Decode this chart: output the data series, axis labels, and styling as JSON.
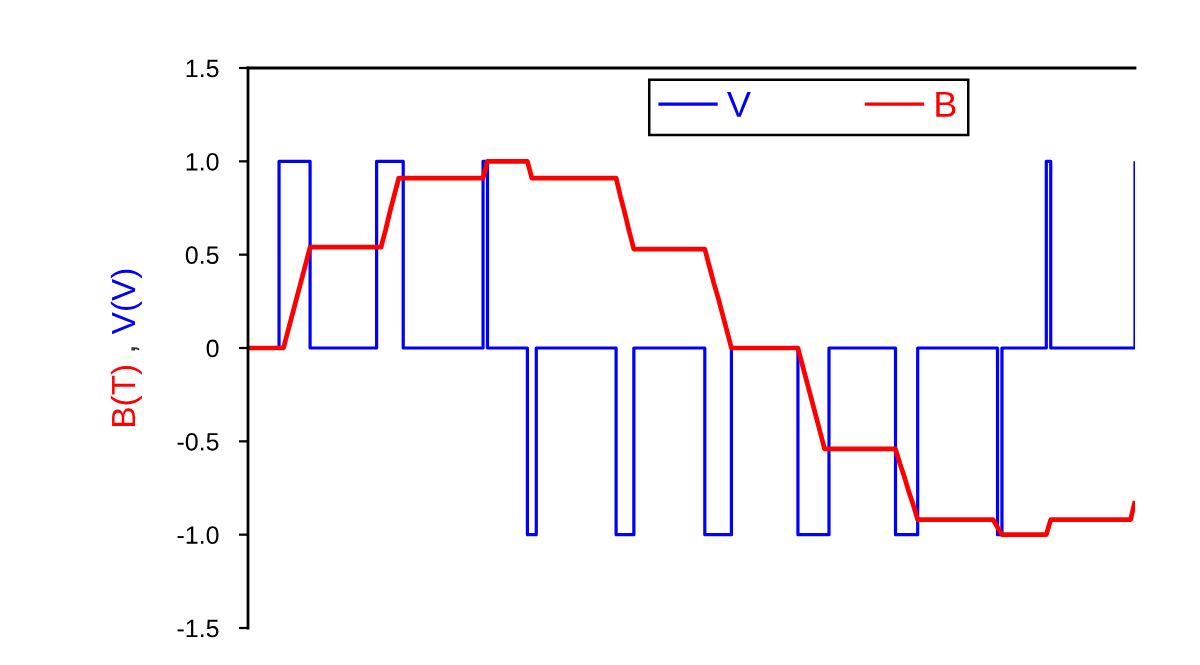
{
  "chart_data": {
    "type": "line",
    "ylabel": "B(T) , V(V)",
    "categories": [
      null,
      null,
      null,
      null,
      null,
      null,
      null,
      null,
      null,
      null,
      null,
      null,
      null,
      null,
      null,
      null,
      null,
      null,
      null,
      null,
      null,
      null,
      null,
      null,
      null,
      null,
      null,
      null,
      null,
      null,
      null,
      null,
      null,
      null,
      null,
      null,
      null,
      null,
      null,
      null,
      null,
      null,
      null,
      null,
      null,
      null,
      null,
      null,
      null,
      null,
      null,
      null,
      null,
      null,
      null,
      null,
      null,
      null,
      null,
      null,
      null,
      null,
      null,
      null,
      null,
      null,
      null,
      null,
      null,
      null,
      null,
      null,
      null,
      null,
      null,
      null,
      null,
      null,
      null,
      null,
      null,
      null,
      null,
      null,
      null,
      null,
      null,
      null,
      null,
      null,
      null,
      null,
      null,
      null,
      null,
      null,
      null,
      null,
      null,
      null,
      null,
      null,
      null,
      null,
      null,
      null,
      null,
      null,
      null,
      null,
      null,
      null,
      null,
      null,
      null,
      null,
      null,
      null,
      null,
      null,
      null,
      null,
      null,
      null,
      null,
      null,
      null,
      null,
      null,
      null,
      null,
      null,
      null,
      null,
      null,
      null,
      null,
      null,
      null,
      null,
      null,
      null,
      null,
      null,
      null,
      null,
      null,
      null,
      null,
      null,
      null,
      null,
      null,
      null,
      null,
      null,
      null,
      null,
      null,
      null,
      null,
      null,
      null,
      null,
      null,
      null,
      null,
      null,
      null,
      null,
      null,
      null,
      null,
      null,
      null,
      null,
      null,
      null,
      null,
      null,
      null,
      null,
      null,
      null,
      null,
      null,
      null,
      null,
      null,
      null,
      null,
      null,
      null,
      null,
      null,
      null,
      null,
      null,
      null,
      null,
      null
    ],
    "series": [
      {
        "name": "V",
        "type": "step",
        "color": "#0000ff",
        "values": [
          null,
          null,
          null,
          null,
          null,
          0,
          0,
          1,
          1,
          1,
          1,
          1,
          1,
          1,
          0,
          0,
          0,
          0,
          0,
          0,
          0,
          0,
          0,
          0,
          0,
          0,
          0,
          0,
          0,
          1,
          1,
          1,
          1,
          1,
          1,
          0,
          0,
          0,
          0,
          0,
          0,
          0,
          0,
          0,
          0,
          0,
          0,
          0,
          0,
          0,
          0,
          0,
          0,
          1,
          0,
          0,
          0,
          0,
          0,
          0,
          0,
          0,
          0,
          -1,
          -1,
          0,
          0,
          0,
          0,
          0,
          0,
          0,
          0,
          0,
          0,
          0,
          0,
          0,
          0,
          0,
          0,
          0,
          0,
          -1,
          -1,
          -1,
          -1,
          0,
          0,
          0,
          0,
          0,
          0,
          0,
          0,
          0,
          0,
          0,
          0,
          0,
          0,
          0,
          0,
          -1,
          -1,
          -1,
          -1,
          -1,
          -1,
          0,
          0,
          0,
          0,
          0,
          0,
          0,
          0,
          0,
          0,
          0,
          0,
          0,
          0,
          0,
          -1,
          -1,
          -1,
          -1,
          -1,
          -1,
          -1,
          0,
          0,
          0,
          0,
          0,
          0,
          0,
          0,
          0,
          0,
          0,
          0,
          0,
          0,
          0,
          -1,
          -1,
          -1,
          -1,
          -1,
          0,
          0,
          0,
          0,
          0,
          0,
          0,
          0,
          0,
          0,
          0,
          0,
          0,
          0,
          0,
          0,
          0,
          0,
          -1,
          0,
          0,
          0,
          0,
          0,
          0,
          0,
          0,
          0,
          0,
          1,
          0,
          0,
          0,
          0,
          0,
          0,
          0,
          0,
          0,
          0,
          0,
          0,
          0,
          0,
          0,
          0,
          0,
          0,
          0,
          1
        ]
      },
      {
        "name": "B",
        "color": "#ff0000",
        "values": [
          0,
          0,
          0,
          0,
          0,
          0,
          0,
          0,
          0,
          0.09,
          0.18,
          0.27,
          0.36,
          0.45,
          0.54,
          0.54,
          0.54,
          0.54,
          0.54,
          0.54,
          0.54,
          0.54,
          0.54,
          0.54,
          0.54,
          0.54,
          0.54,
          0.54,
          0.54,
          0.54,
          0.54,
          0.63,
          0.73,
          0.82,
          0.91,
          0.91,
          0.91,
          0.91,
          0.91,
          0.91,
          0.91,
          0.91,
          0.91,
          0.91,
          0.91,
          0.91,
          0.91,
          0.91,
          0.91,
          0.91,
          0.91,
          0.91,
          0.91,
          0.91,
          1,
          1,
          1,
          1,
          1,
          1,
          1,
          1,
          1,
          1,
          0.91,
          0.91,
          0.91,
          0.91,
          0.91,
          0.91,
          0.91,
          0.91,
          0.91,
          0.91,
          0.91,
          0.91,
          0.91,
          0.91,
          0.91,
          0.91,
          0.91,
          0.91,
          0.91,
          0.91,
          0.81,
          0.72,
          0.62,
          0.53,
          0.53,
          0.53,
          0.53,
          0.53,
          0.53,
          0.53,
          0.53,
          0.53,
          0.53,
          0.53,
          0.53,
          0.53,
          0.53,
          0.53,
          0.53,
          0.53,
          0.44,
          0.35,
          0.27,
          0.18,
          0.09,
          0,
          0,
          0,
          0,
          0,
          0,
          0,
          0,
          0,
          0,
          0,
          0,
          0,
          0,
          0,
          0,
          -0.09,
          -0.18,
          -0.27,
          -0.36,
          -0.45,
          -0.54,
          -0.54,
          -0.54,
          -0.54,
          -0.54,
          -0.54,
          -0.54,
          -0.54,
          -0.54,
          -0.54,
          -0.54,
          -0.54,
          -0.54,
          -0.54,
          -0.54,
          -0.54,
          -0.54,
          -0.62,
          -0.69,
          -0.77,
          -0.84,
          -0.92,
          -0.92,
          -0.92,
          -0.92,
          -0.92,
          -0.92,
          -0.92,
          -0.92,
          -0.92,
          -0.92,
          -0.92,
          -0.92,
          -0.92,
          -0.92,
          -0.92,
          -0.92,
          -0.92,
          -0.92,
          -0.96,
          -1,
          -1,
          -1,
          -1,
          -1,
          -1,
          -1,
          -1,
          -1,
          -1,
          -1,
          -0.92,
          -0.92,
          -0.92,
          -0.92,
          -0.92,
          -0.92,
          -0.92,
          -0.92,
          -0.92,
          -0.92,
          -0.92,
          -0.92,
          -0.92,
          -0.92,
          -0.92,
          -0.92,
          -0.92,
          -0.92,
          -0.92,
          -0.82
        ]
      }
    ],
    "ylim": [
      -1.5,
      1.5
    ],
    "yticks": [
      1.5,
      {
        "value": 1,
        "label": "1.0"
      },
      0.5,
      0,
      -0.5,
      {
        "value": -1,
        "label": "-1.0"
      },
      -1.5
    ],
    "tick_labels": "y",
    "legend": "top right"
  }
}
